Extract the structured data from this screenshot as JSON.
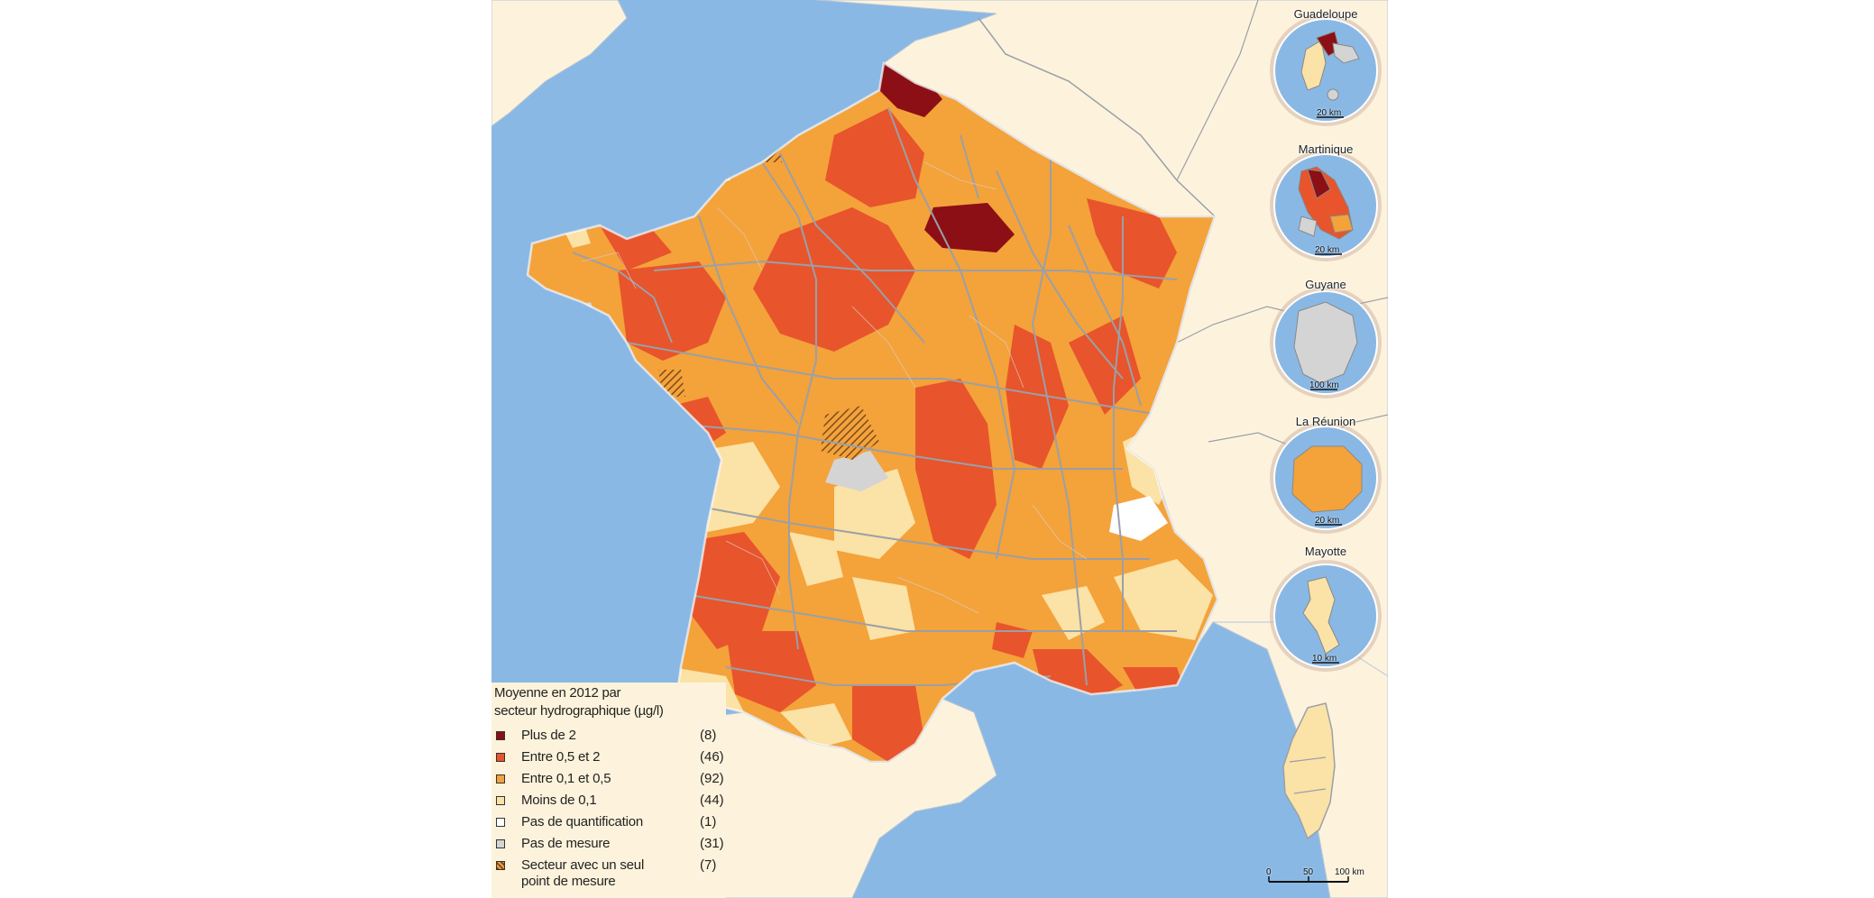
{
  "insets": [
    {
      "name": "Guadeloupe",
      "scale": "20 km"
    },
    {
      "name": "Martinique",
      "scale": "20 km"
    },
    {
      "name": "Guyane",
      "scale": "100 km"
    },
    {
      "name": "La Réunion",
      "scale": "20 km"
    },
    {
      "name": "Mayotte",
      "scale": "10 km"
    }
  ],
  "scale_bar": {
    "zero": "0",
    "mid": "50",
    "end": "100 km"
  },
  "legend": {
    "title_line1": "Moyenne en 2012 par",
    "title_line2": "secteur hydrographique (µg/l)",
    "items": [
      {
        "label": "Plus de 2",
        "count": "(8)",
        "color": "#8c0f16"
      },
      {
        "label": "Entre 0,5 et 2",
        "count": "(46)",
        "color": "#e8542c"
      },
      {
        "label": "Entre 0,1 et 0,5",
        "count": "(92)",
        "color": "#f4a23a"
      },
      {
        "label": "Moins de 0,1",
        "count": "(44)",
        "color": "#fbe2a6"
      },
      {
        "label": "Pas de quantification",
        "count": "(1)",
        "color": "#ffffff"
      },
      {
        "label": "Pas de mesure",
        "count": "(31)",
        "color": "#d4d4d4"
      },
      {
        "label": "Secteur avec un seul",
        "label2": "point de mesure",
        "count": "(7)",
        "color": "hatched"
      }
    ]
  },
  "colors": {
    "sea": "#8ab8e4",
    "land_outside": "#fdf3dc",
    "borders": "#9aa0a8"
  }
}
